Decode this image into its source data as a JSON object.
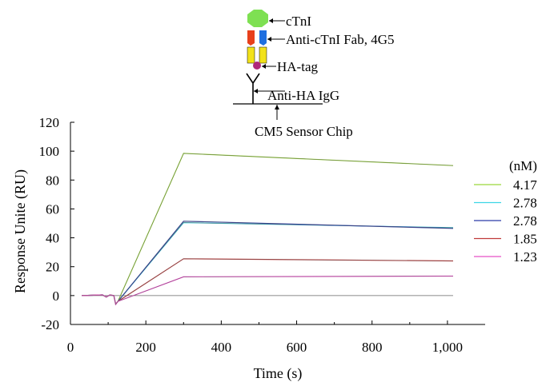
{
  "diagram": {
    "labels": [
      "cTnI",
      "Anti-cTnI Fab, 4G5",
      "HA-tag",
      "Anti-HA IgG",
      "CM5 Sensor Chip"
    ],
    "colors": {
      "ctni": "#7ee052",
      "fab_heavy": "#e8401c",
      "fab_light": "#1f6fe0",
      "ha_domain": "#f2e21a",
      "ha_tag": "#b0287a"
    }
  },
  "chart_data": {
    "type": "line",
    "title": "",
    "xlabel": "Time (s)",
    "ylabel": "Response Unite (RU)",
    "xlim": [
      0,
      1100
    ],
    "ylim": [
      -20,
      120
    ],
    "xticks": [
      0,
      200,
      400,
      600,
      800,
      1000
    ],
    "xtick_labels": [
      "0",
      "200",
      "400",
      "600",
      "800",
      "1,000"
    ],
    "yticks": [
      -20,
      0,
      20,
      40,
      60,
      80,
      100,
      120
    ],
    "grid": false,
    "legend": {
      "title": "(nM)",
      "placement": "right",
      "entries": [
        "4.17",
        "2.78",
        "2.78",
        "1.85",
        "1.23"
      ]
    },
    "injection_start": 120,
    "injection_end": 300,
    "run_end": 1015,
    "series": [
      {
        "name": "4.17",
        "color": "#9bd83a",
        "dip": -6,
        "peak": 98.5,
        "end": 90
      },
      {
        "name": "2.78",
        "color": "#3cd6e6",
        "dip": -6,
        "peak": 50.5,
        "end": 47
      },
      {
        "name": "2.78",
        "color": "#2a3aa8",
        "dip": -6,
        "peak": 51.5,
        "end": 46.5
      },
      {
        "name": "1.85",
        "color": "#c03a3a",
        "dip": -6,
        "peak": 25.5,
        "end": 24
      },
      {
        "name": "1.23",
        "color": "#e850c8",
        "dip": -6,
        "peak": 13,
        "end": 13.5
      }
    ]
  }
}
